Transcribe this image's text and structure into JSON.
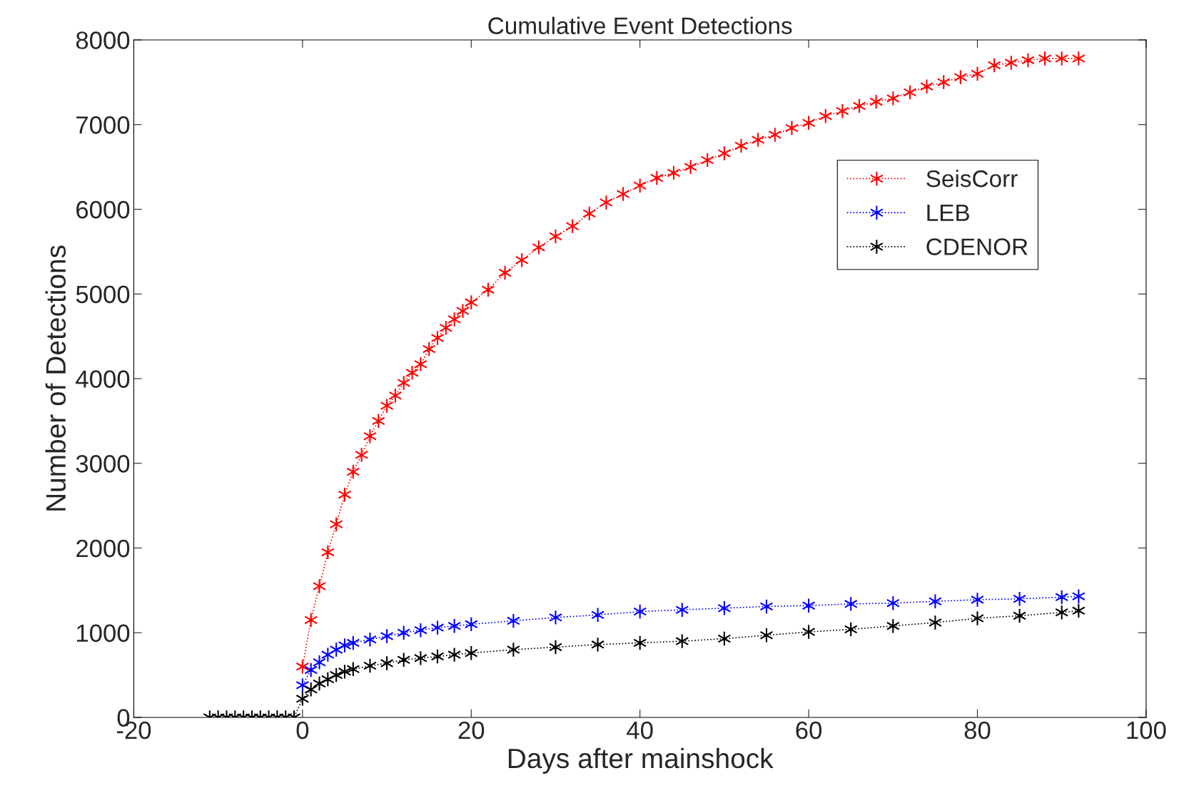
{
  "chart_data": {
    "type": "line",
    "title": "Cumulative Event Detections",
    "xlabel": "Days after mainshock",
    "ylabel": "Number of Detections",
    "xlim": [
      -20,
      100
    ],
    "xticks": [
      -20,
      0,
      20,
      40,
      60,
      80,
      100
    ],
    "ylim": [
      0,
      8000
    ],
    "yticks": [
      0,
      1000,
      2000,
      3000,
      4000,
      5000,
      6000,
      7000,
      8000
    ],
    "grid": false,
    "legend": "top right",
    "marker": "cross",
    "line_style": "dotted",
    "series": [
      {
        "name": "SeisCorr",
        "color": "#ff0000",
        "x": [
          0,
          1,
          2,
          3,
          4,
          5,
          6,
          7,
          8,
          9,
          10,
          11,
          12,
          13,
          14,
          15,
          16,
          17,
          18,
          19,
          20,
          22,
          24,
          26,
          28,
          30,
          32,
          34,
          36,
          38,
          40,
          42,
          44,
          46,
          48,
          50,
          52,
          54,
          56,
          58,
          60,
          62,
          64,
          66,
          68,
          70,
          72,
          74,
          76,
          78,
          80,
          82,
          84,
          86,
          88,
          90,
          92
        ],
        "values": [
          600,
          1150,
          1550,
          1950,
          2280,
          2630,
          2900,
          3100,
          3320,
          3500,
          3680,
          3800,
          3950,
          4070,
          4170,
          4350,
          4480,
          4600,
          4700,
          4800,
          4900,
          5050,
          5250,
          5400,
          5550,
          5680,
          5800,
          5950,
          6080,
          6180,
          6280,
          6370,
          6430,
          6500,
          6580,
          6660,
          6750,
          6820,
          6880,
          6960,
          7020,
          7100,
          7160,
          7220,
          7270,
          7310,
          7380,
          7450,
          7500,
          7560,
          7600,
          7700,
          7730,
          7760,
          7780,
          7780,
          7780
        ]
      },
      {
        "name": "LEB",
        "color": "#0000ff",
        "x": [
          0,
          1,
          2,
          3,
          4,
          5,
          6,
          8,
          10,
          12,
          14,
          16,
          18,
          20,
          25,
          30,
          35,
          40,
          45,
          50,
          55,
          60,
          65,
          70,
          75,
          80,
          85,
          90,
          92
        ],
        "values": [
          380,
          560,
          650,
          740,
          800,
          850,
          880,
          920,
          960,
          1000,
          1030,
          1060,
          1080,
          1100,
          1140,
          1180,
          1210,
          1250,
          1270,
          1290,
          1310,
          1320,
          1340,
          1350,
          1370,
          1390,
          1400,
          1420,
          1430
        ]
      },
      {
        "name": "CDENOR",
        "color": "#000000",
        "x": [
          -11,
          -10,
          -9,
          -8,
          -7,
          -6,
          -5,
          -4,
          -3,
          -2,
          -1,
          0,
          1,
          2,
          3,
          4,
          5,
          6,
          8,
          10,
          12,
          14,
          16,
          18,
          20,
          25,
          30,
          35,
          40,
          45,
          50,
          55,
          60,
          65,
          70,
          75,
          80,
          85,
          90,
          92
        ],
        "values": [
          0,
          0,
          0,
          0,
          0,
          0,
          0,
          0,
          0,
          0,
          0,
          220,
          330,
          400,
          450,
          500,
          540,
          570,
          610,
          640,
          680,
          700,
          720,
          740,
          760,
          800,
          830,
          860,
          880,
          900,
          930,
          970,
          1010,
          1040,
          1080,
          1120,
          1170,
          1200,
          1240,
          1260
        ]
      }
    ]
  }
}
